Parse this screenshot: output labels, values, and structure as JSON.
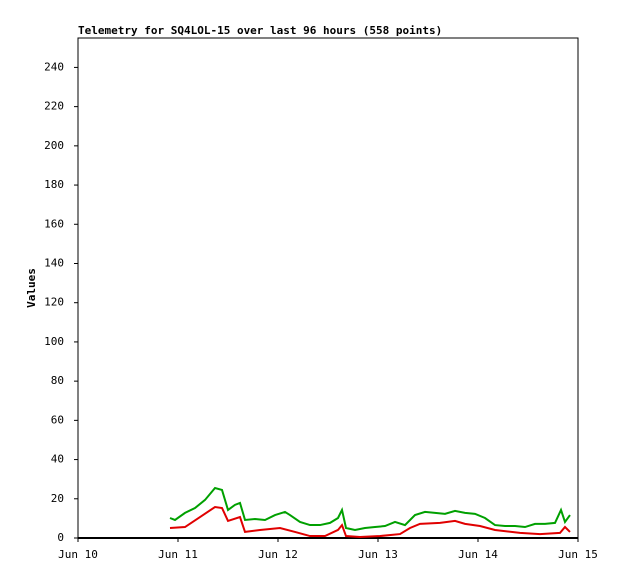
{
  "chart_data": {
    "type": "line",
    "title": "Telemetry for SQ4LOL-15 over last 96 hours (558 points)",
    "y_label": "Values",
    "ylim": [
      0,
      255
    ],
    "yticks": [
      0,
      20,
      40,
      60,
      80,
      100,
      120,
      140,
      160,
      180,
      200,
      220,
      240
    ],
    "xlim": [
      10,
      15
    ],
    "xticks": [
      {
        "value": 10,
        "label": "Jun 10"
      },
      {
        "value": 11,
        "label": "Jun 11"
      },
      {
        "value": 12,
        "label": "Jun 12"
      },
      {
        "value": 13,
        "label": "Jun 13"
      },
      {
        "value": 14,
        "label": "Jun 14"
      },
      {
        "value": 15,
        "label": "Jun 15"
      }
    ],
    "grid": false,
    "series": [
      {
        "color": "#00a000",
        "x": [
          10.92,
          10.97,
          11.07,
          11.17,
          11.27,
          11.37,
          11.44,
          11.5,
          11.57,
          11.62,
          11.67,
          11.77,
          11.87,
          11.97,
          12.07,
          12.12,
          12.22,
          12.32,
          12.42,
          12.52,
          12.6,
          12.64,
          12.68,
          12.77,
          12.87,
          12.97,
          13.07,
          13.17,
          13.27,
          13.37,
          13.47,
          13.57,
          13.67,
          13.77,
          13.87,
          13.97,
          14.07,
          14.17,
          14.27,
          14.37,
          14.47,
          14.57,
          14.67,
          14.77,
          14.83,
          14.87,
          14.92
        ],
        "values": [
          10.2,
          9.2,
          12.8,
          15.3,
          19.4,
          25.5,
          24.5,
          14.3,
          16.9,
          17.9,
          9.2,
          9.7,
          9.2,
          11.7,
          13.3,
          11.7,
          8.2,
          6.6,
          6.6,
          7.7,
          10.2,
          14.3,
          5.1,
          4.1,
          5.1,
          5.6,
          6.1,
          8.2,
          6.6,
          11.7,
          13.3,
          12.8,
          12.3,
          13.8,
          12.8,
          12.3,
          10.2,
          6.6,
          6.1,
          6.1,
          5.6,
          7.2,
          7.2,
          7.7,
          14.3,
          8.2,
          11.7
        ]
      },
      {
        "color": "#e00000",
        "x": [
          10.92,
          11.07,
          11.22,
          11.37,
          11.44,
          11.5,
          11.62,
          11.67,
          11.82,
          12.02,
          12.17,
          12.32,
          12.47,
          12.6,
          12.64,
          12.68,
          12.82,
          13.02,
          13.22,
          13.32,
          13.42,
          13.62,
          13.77,
          13.87,
          14.02,
          14.17,
          14.42,
          14.62,
          14.82,
          14.87,
          14.92
        ],
        "values": [
          5.1,
          5.6,
          10.7,
          15.8,
          15.3,
          8.7,
          10.7,
          3.1,
          4.1,
          5.1,
          3.1,
          1,
          1,
          4.1,
          6.6,
          1,
          0.5,
          1,
          2,
          5.1,
          7.2,
          7.7,
          8.7,
          7.2,
          6.1,
          4.1,
          2.6,
          2,
          2.6,
          5.6,
          3.1
        ]
      }
    ]
  }
}
